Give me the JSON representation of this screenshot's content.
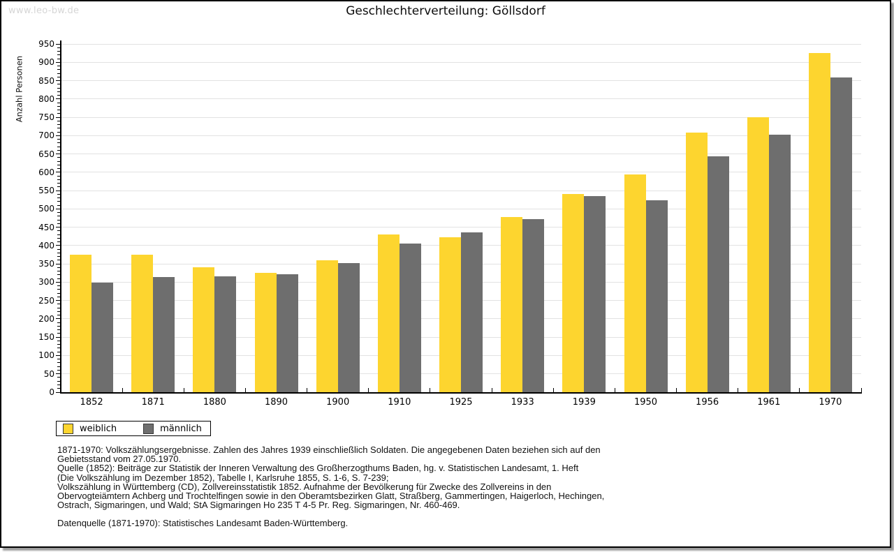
{
  "watermark": "www.leo-bw.de",
  "title": "Geschlechterverteilung: Göllsdorf",
  "chart_data": {
    "type": "bar",
    "title": "Geschlechterverteilung: Göllsdorf",
    "xlabel": "",
    "ylabel": "Anzahl Personen",
    "ylim": [
      0,
      950
    ],
    "ytick_step": 50,
    "minor_tick_step": 10,
    "grid": true,
    "legend_position": "bottom-left",
    "categories": [
      "1852",
      "1871",
      "1880",
      "1890",
      "1900",
      "1910",
      "1925",
      "1933",
      "1939",
      "1950",
      "1956",
      "1961",
      "1970"
    ],
    "series": [
      {
        "name": "weiblich",
        "color": "#FDD52F",
        "values": [
          375,
          375,
          340,
          325,
          360,
          430,
          422,
          478,
          541,
          595,
          708,
          751,
          926
        ]
      },
      {
        "name": "männlich",
        "color": "#6E6E6E",
        "values": [
          299,
          314,
          317,
          321,
          352,
          406,
          436,
          472,
          536,
          524,
          643,
          702,
          858
        ]
      }
    ]
  },
  "legend": {
    "items": [
      {
        "label": "weiblich",
        "color": "#FDD52F"
      },
      {
        "label": "männlich",
        "color": "#6E6E6E"
      }
    ]
  },
  "footnotes": {
    "lines": [
      "1871-1970: Volkszählungsergebnisse. Zahlen des Jahres 1939 einschließlich Soldaten. Die angegebenen Daten beziehen sich auf den",
      "Gebietsstand vom 27.05.1970.",
      "Quelle (1852): Beiträge zur Statistik der Inneren Verwaltung des Großherzogthums Baden, hg. v. Statistischen Landesamt, 1. Heft",
      "(Die Volkszählung im Dezember 1852), Tabelle I, Karlsruhe 1855, S. 1-6, S. 7-239;",
      "Volkszählung in Württemberg (CD), Zollvereinsstatistik 1852. Aufnahme der Bevölkerung für Zwecke des Zollvereins in den",
      "Obervogteiämtern Achberg und Trochtelfingen sowie in den Oberamtsbezirken Glatt, Straßberg, Gammertingen, Haigerloch, Hechingen,",
      "Ostrach, Sigmaringen, und Wald; StA Sigmaringen Ho 235 T 4-5 Pr. Reg. Sigmaringen, Nr. 460-469."
    ],
    "source": "Datenquelle (1871-1970): Statistisches Landesamt Baden-Württemberg."
  },
  "colors": {
    "frame_border": "#000000",
    "frame_shadow": "#9c9c9c",
    "gridline": "#e2e2e2",
    "watermark": "#d6d6d6",
    "bar_weiblich": "#FDD52F",
    "bar_maennlich": "#6E6E6E"
  }
}
